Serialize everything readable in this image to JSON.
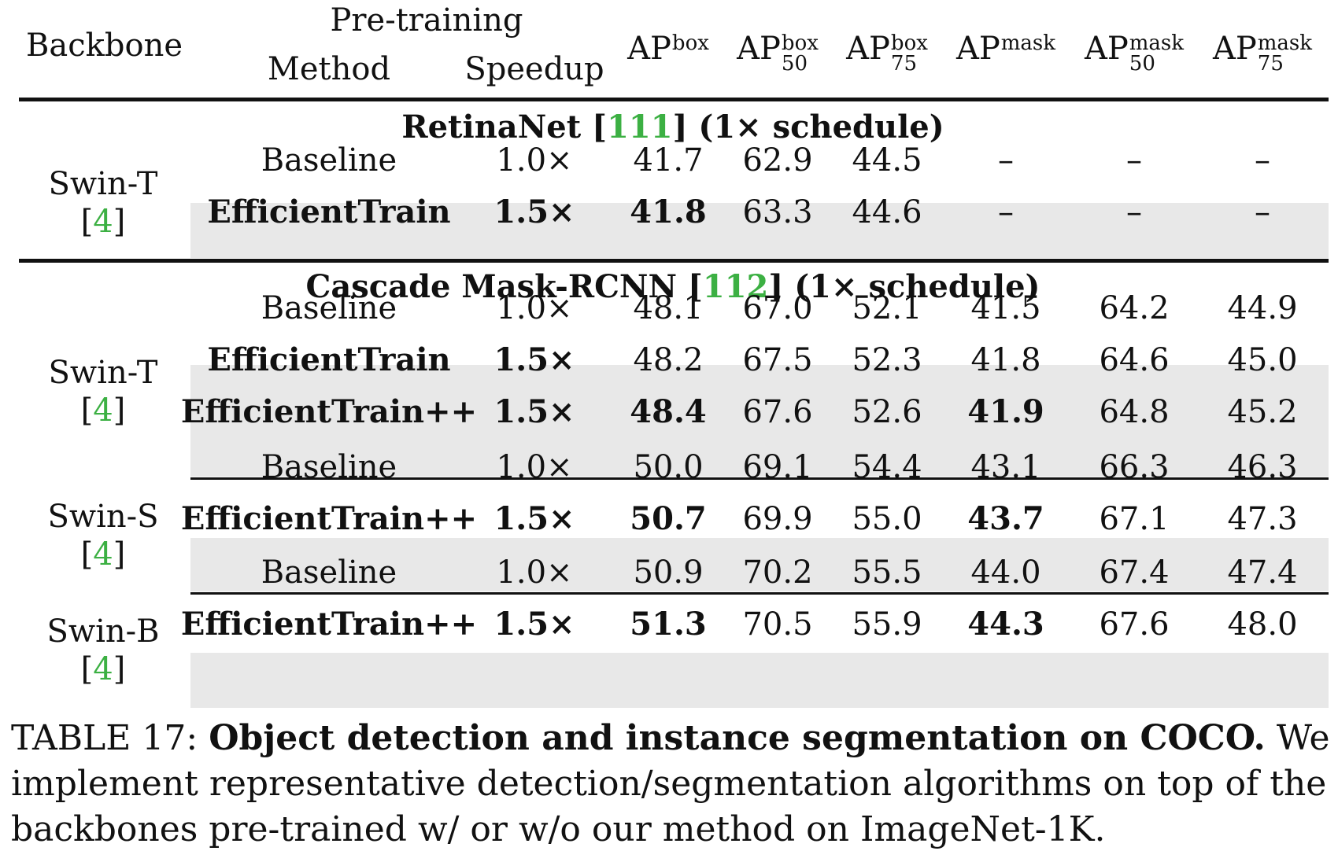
{
  "header": {
    "backbone": "Backbone",
    "pretraining": "Pre-training",
    "method": "Method",
    "speedup": "Speedup",
    "ap_box": {
      "base": "AP",
      "sup": "box"
    },
    "ap_box_50": {
      "base": "AP",
      "sup": "box",
      "sub": "50"
    },
    "ap_box_75": {
      "base": "AP",
      "sup": "box",
      "sub": "75"
    },
    "ap_mask": {
      "base": "AP",
      "sup": "mask"
    },
    "ap_mask_50": {
      "base": "AP",
      "sup": "mask",
      "sub": "50"
    },
    "ap_mask_75": {
      "base": "AP",
      "sup": "mask",
      "sub": "75"
    }
  },
  "sections": {
    "retinanet": {
      "name": "RetinaNet [",
      "ref": "111",
      "suffix": "] (1× schedule)"
    },
    "cascade": {
      "name": "Cascade Mask-RCNN [",
      "ref": "112",
      "suffix": "] (1× schedule)"
    }
  },
  "backbones": {
    "swin_t_1": {
      "name": "Swin-T",
      "ref": "4"
    },
    "swin_t_2": {
      "name": "Swin-T",
      "ref": "4"
    },
    "swin_s": {
      "name": "Swin-S",
      "ref": "4"
    },
    "swin_b": {
      "name": "Swin-B",
      "ref": "4"
    }
  },
  "rows": [
    {
      "method": "Baseline",
      "speedup": "1.0×",
      "v": [
        "41.7",
        "62.9",
        "44.5",
        "–",
        "–",
        "–"
      ]
    },
    {
      "method": "EfficientTrain",
      "speedup": "1.5×",
      "v": [
        "41.8",
        "63.3",
        "44.6",
        "–",
        "–",
        "–"
      ]
    },
    {
      "method": "Baseline",
      "speedup": "1.0×",
      "v": [
        "48.1",
        "67.0",
        "52.1",
        "41.5",
        "64.2",
        "44.9"
      ]
    },
    {
      "method": "EfficientTrain",
      "speedup": "1.5×",
      "v": [
        "48.2",
        "67.5",
        "52.3",
        "41.8",
        "64.6",
        "45.0"
      ]
    },
    {
      "method": "EfficientTrain++",
      "speedup": "1.5×",
      "v": [
        "48.4",
        "67.6",
        "52.6",
        "41.9",
        "64.8",
        "45.2"
      ]
    },
    {
      "method": "Baseline",
      "speedup": "1.0×",
      "v": [
        "50.0",
        "69.1",
        "54.4",
        "43.1",
        "66.3",
        "46.3"
      ]
    },
    {
      "method": "EfficientTrain++",
      "speedup": "1.5×",
      "v": [
        "50.7",
        "69.9",
        "55.0",
        "43.7",
        "67.1",
        "47.3"
      ]
    },
    {
      "method": "Baseline",
      "speedup": "1.0×",
      "v": [
        "50.9",
        "70.2",
        "55.5",
        "44.0",
        "67.4",
        "47.4"
      ]
    },
    {
      "method": "EfficientTrain++",
      "speedup": "1.5×",
      "v": [
        "51.3",
        "70.5",
        "55.9",
        "44.3",
        "67.6",
        "48.0"
      ]
    }
  ],
  "caption": {
    "label": "TABLE 17: ",
    "bold": "Object detection and instance segmentation on COCO.",
    "rest": " We implement representative detection/segmentation algorithms on top of the backbones pre-trained w/ or w/o our method on ImageNet-1K."
  }
}
